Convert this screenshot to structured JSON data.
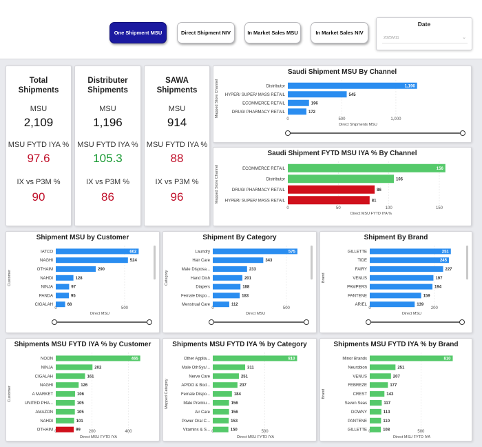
{
  "nav": {
    "buttons": [
      "One Shipment MSU",
      "Direct Shipment NIV",
      "In Market Sales MSU",
      "In Market Sales NIV"
    ],
    "active_index": 0,
    "date_label": "Date",
    "date_value": "2025M11"
  },
  "kpis": [
    {
      "title": "Total Shipments",
      "msu_label": "MSU",
      "msu": "2,109",
      "iya_label": "MSU FYTD IYA %",
      "iya": "97.6",
      "iya_status": "red",
      "ix_label": "IX vs P3M %",
      "ix": "90",
      "ix_status": "red"
    },
    {
      "title": "Distributer Shipments",
      "msu_label": "MSU",
      "msu": "1,196",
      "iya_label": "MSU FYTD IYA %",
      "iya": "105.3",
      "iya_status": "green",
      "ix_label": "IX vs P3M %",
      "ix": "86",
      "ix_status": "red"
    },
    {
      "title": "SAWA Shipments",
      "msu_label": "MSU",
      "msu": "914",
      "iya_label": "MSU FYTD IYA %",
      "iya": "88",
      "iya_status": "red",
      "ix_label": "IX vs P3M %",
      "ix": "96",
      "ix_status": "red"
    }
  ],
  "colors": {
    "blue": "#2a8df0",
    "green": "#55c96a",
    "red": "#d0101c",
    "nav_active": "#1b1aa0"
  },
  "chart_data": [
    {
      "type": "bar",
      "orientation": "horizontal",
      "title": "Saudi Shipment MSU By Channel",
      "ylabel": "Mapped Store Channel",
      "xlabel": "Direct Shipments MSU",
      "categories": [
        "Distributor",
        "HYPER/ SUPER/ MASS RETAIL",
        "ECOMMERCE RETAIL",
        "DRUG/ PHARMACY RETAIL"
      ],
      "values": [
        1196,
        545,
        196,
        172
      ],
      "labels": [
        "1,196",
        "545",
        "196",
        "172"
      ],
      "bar_colors": [
        "blue",
        "blue",
        "blue",
        "blue"
      ],
      "xlim": [
        0,
        1300
      ],
      "ticks": [
        0,
        500,
        1000
      ],
      "tick_labels": [
        "0",
        "500",
        "1,000"
      ],
      "scrollbar": true
    },
    {
      "type": "bar",
      "orientation": "horizontal",
      "title": "Saudi Shipment FYTD MSU IYA % By Channel",
      "ylabel": "Mapped Store Channel",
      "xlabel": "Direct MSU FYTD IYA %",
      "categories": [
        "ECOMMERCE RETAIL",
        "Distributor",
        "DRUG/ PHARMACY RETAIL",
        "HYPER/ SUPER/ MASS RETAIL"
      ],
      "values": [
        156,
        105,
        86,
        81
      ],
      "labels": [
        "156",
        "105",
        "86",
        "81"
      ],
      "bar_colors": [
        "green",
        "green",
        "red",
        "red"
      ],
      "xlim": [
        0,
        165
      ],
      "ticks": [
        0,
        50,
        100,
        150
      ],
      "tick_labels": [
        "0",
        "50",
        "100",
        "150"
      ],
      "scrollbar": false
    },
    {
      "type": "bar",
      "orientation": "horizontal",
      "title": "Shipment MSU by Customer",
      "ylabel": "Customer",
      "xlabel": "Direct MSU",
      "categories": [
        "IATCO",
        "NAGHI",
        "OTHAIM",
        "NAHDI",
        "NINJA",
        "PANDA",
        "CIGALAH"
      ],
      "values": [
        602,
        524,
        290,
        128,
        97,
        95,
        68
      ],
      "labels": [
        "602",
        "524",
        "290",
        "128",
        "97",
        "95",
        "68"
      ],
      "bar_colors": [
        "blue",
        "blue",
        "blue",
        "blue",
        "blue",
        "blue",
        "blue"
      ],
      "xlim": [
        0,
        640
      ],
      "ticks": [
        0,
        500
      ],
      "tick_labels": [
        "0",
        "500"
      ],
      "scrollbar": true
    },
    {
      "type": "bar",
      "orientation": "horizontal",
      "title": "Shipment By Category",
      "ylabel": "Category",
      "xlabel": "Direct MSU",
      "categories": [
        "Laundry",
        "Hair Care",
        "Male Disposa...",
        "Hand Dish",
        "Diapers",
        "Female Dispo...",
        "Menstrual Care"
      ],
      "values": [
        575,
        343,
        233,
        201,
        188,
        183,
        112
      ],
      "labels": [
        "575",
        "343",
        "233",
        "201",
        "188",
        "183",
        "112"
      ],
      "bar_colors": [
        "blue",
        "blue",
        "blue",
        "blue",
        "blue",
        "blue",
        "blue"
      ],
      "xlim": [
        0,
        580
      ],
      "ticks": [
        0,
        500
      ],
      "tick_labels": [
        "0",
        "500"
      ],
      "scrollbar": true
    },
    {
      "type": "bar",
      "orientation": "horizontal",
      "title": "Shipment By Brand",
      "ylabel": "Brand",
      "xlabel": "Direct MSU",
      "categories": [
        "GILLETTE",
        "TIDE",
        "FAIRY",
        "VENUS",
        "PAMPERS",
        "PANTENE",
        "ARIEL"
      ],
      "values": [
        251,
        245,
        227,
        197,
        194,
        159,
        139
      ],
      "labels": [
        "251",
        "245",
        "227",
        "197",
        "194",
        "159",
        "139"
      ],
      "bar_colors": [
        "blue",
        "blue",
        "blue",
        "blue",
        "blue",
        "blue",
        "blue"
      ],
      "xlim": [
        0,
        260
      ],
      "ticks": [
        0,
        200
      ],
      "tick_labels": [
        "0",
        "200"
      ],
      "scrollbar": true
    },
    {
      "type": "bar",
      "orientation": "horizontal",
      "title": "Shipments MSU FYTD IYA % by Customer",
      "ylabel": "Customer",
      "xlabel": "Direct MSU FYTD IYA",
      "categories": [
        "NOON",
        "NINJA",
        "CIGALAH",
        "NAGHI",
        "A MARKET",
        "UNITED PHA...",
        "AMAZON",
        "NAHDI",
        "OTHAIM"
      ],
      "values": [
        465,
        202,
        161,
        126,
        106,
        105,
        105,
        101,
        99
      ],
      "labels": [
        "465",
        "202",
        "161",
        "126",
        "106",
        "105",
        "105",
        "101",
        "99"
      ],
      "bar_colors": [
        "green",
        "green",
        "green",
        "green",
        "green",
        "green",
        "green",
        "green",
        "red"
      ],
      "xlim": [
        0,
        470
      ],
      "ticks": [
        0,
        200,
        400
      ],
      "tick_labels": [
        "0",
        "200",
        "400"
      ],
      "scrollbar": false
    },
    {
      "type": "bar",
      "orientation": "horizontal",
      "title": "Shipments MSU FYTD IYA % by Category",
      "ylabel": "Mapped Category",
      "xlabel": "Direct MSU FYTD IYA",
      "categories": [
        "Other Applia...",
        "Male OthSys/...",
        "Nerve Care",
        "AP/DO & Bod...",
        "Female Dispo...",
        "Male Premiu...",
        "Air Care",
        "Power Oral C...",
        "Vitamins & S..."
      ],
      "values": [
        810,
        311,
        251,
        237,
        184,
        156,
        156,
        153,
        150
      ],
      "labels": [
        "810",
        "311",
        "251",
        "237",
        "184",
        "156",
        "156",
        "153",
        "150"
      ],
      "bar_colors": [
        "green",
        "green",
        "green",
        "green",
        "green",
        "green",
        "green",
        "green",
        "green"
      ],
      "xlim": [
        0,
        820
      ],
      "ticks": [
        0,
        500
      ],
      "tick_labels": [
        "0",
        "500"
      ],
      "scrollbar": false
    },
    {
      "type": "bar",
      "orientation": "horizontal",
      "title": "Shipments MSU FYTD IYA % by Brand",
      "ylabel": "Brand",
      "xlabel": "Direct MSU FYTD IYA",
      "categories": [
        "Minor Brands",
        "Neurobion",
        "VENUS",
        "FEBREZE",
        "CREST",
        "Seven Seas",
        "DOWNY",
        "PANTENE",
        "GILLETTE"
      ],
      "values": [
        810,
        251,
        207,
        177,
        143,
        117,
        113,
        110,
        108
      ],
      "labels": [
        "810",
        "251",
        "207",
        "177",
        "143",
        "117",
        "113",
        "110",
        "108"
      ],
      "bar_colors": [
        "green",
        "green",
        "green",
        "green",
        "green",
        "green",
        "green",
        "green",
        "green"
      ],
      "xlim": [
        0,
        820
      ],
      "ticks": [
        0,
        500
      ],
      "tick_labels": [
        "0",
        "500"
      ],
      "scrollbar": false
    }
  ]
}
